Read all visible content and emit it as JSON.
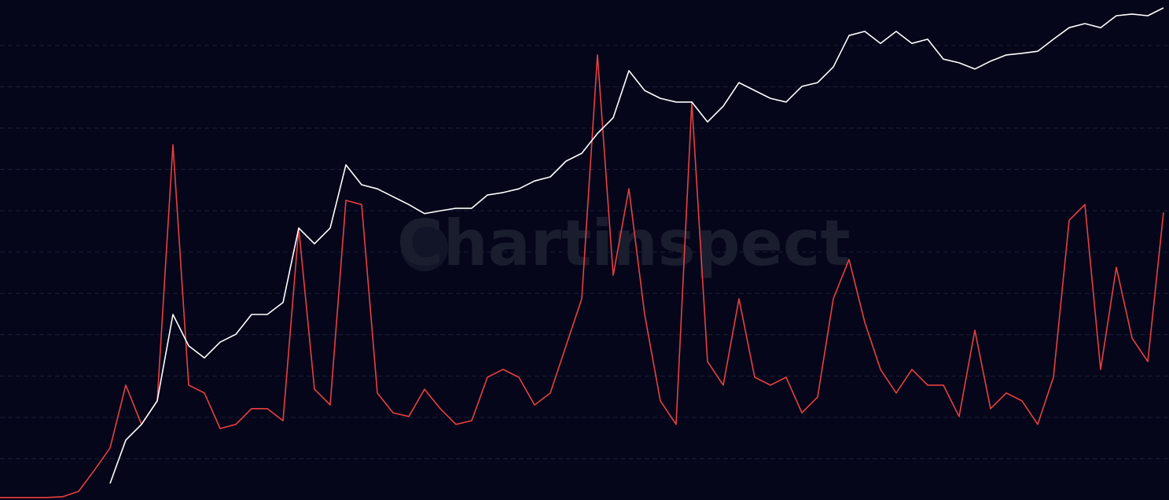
{
  "chart_data": {
    "type": "line",
    "watermark": "Chartinspect",
    "background": "#05061a",
    "grid": true,
    "ylim": [
      0,
      12.1
    ],
    "yticks": [
      1,
      2,
      3,
      4,
      5,
      6,
      7,
      8,
      9,
      10,
      11
    ],
    "categories": [
      null,
      null,
      null,
      null,
      null,
      null,
      null,
      null,
      null,
      null,
      null,
      null,
      null,
      null,
      null,
      null,
      null,
      null,
      null,
      null,
      null,
      null,
      null,
      null,
      null,
      null,
      null,
      null,
      null,
      null,
      null,
      null,
      null,
      null,
      null,
      null,
      null,
      null,
      null,
      null,
      null,
      null,
      null,
      null,
      null,
      null,
      null,
      null,
      null,
      null,
      null,
      null,
      null,
      null,
      null,
      null,
      null,
      null,
      null,
      null,
      null,
      null,
      null,
      null,
      null,
      null,
      null,
      null,
      null,
      null,
      null,
      null,
      null,
      null,
      null
    ],
    "series": [
      {
        "color": "#ffffff",
        "values": [
          null,
          null,
          null,
          null,
          null,
          null,
          null,
          0.4,
          1.45,
          1.83,
          2.4,
          4.49,
          3.73,
          3.44,
          3.82,
          4.01,
          4.49,
          4.49,
          4.78,
          6.58,
          6.2,
          6.58,
          8.11,
          7.63,
          7.53,
          7.34,
          7.15,
          6.93,
          7.0,
          7.06,
          7.06,
          7.38,
          7.44,
          7.53,
          7.72,
          7.82,
          8.2,
          8.39,
          8.87,
          9.25,
          10.39,
          9.91,
          9.72,
          9.63,
          9.63,
          9.15,
          9.53,
          10.1,
          9.91,
          9.72,
          9.63,
          10.01,
          10.1,
          10.48,
          11.24,
          11.34,
          11.05,
          11.34,
          11.05,
          11.15,
          10.67,
          10.58,
          10.43,
          10.62,
          10.77,
          10.81,
          10.86,
          11.15,
          11.43,
          11.53,
          11.43,
          11.72,
          11.76,
          11.72,
          11.91
        ]
      },
      {
        "color": "#e8403f",
        "values": [
          0.06,
          0.06,
          0.06,
          0.06,
          0.08,
          0.21,
          0.72,
          1.26,
          2.78,
          1.83,
          2.4,
          8.6,
          2.78,
          2.59,
          1.73,
          1.83,
          2.21,
          2.21,
          1.92,
          6.58,
          2.68,
          2.3,
          7.25,
          7.15,
          2.59,
          2.11,
          2.02,
          2.68,
          2.21,
          1.83,
          1.92,
          2.97,
          3.16,
          2.97,
          2.3,
          2.59,
          3.73,
          4.87,
          10.77,
          5.44,
          7.53,
          4.49,
          2.4,
          1.83,
          9.63,
          3.35,
          2.78,
          4.87,
          2.97,
          2.78,
          2.97,
          2.11,
          2.49,
          4.87,
          5.82,
          4.3,
          3.16,
          2.59,
          3.16,
          2.78,
          2.78,
          2.02,
          4.11,
          2.21,
          2.59,
          2.4,
          1.83,
          2.97,
          6.77,
          7.15,
          3.16,
          5.63,
          3.92,
          3.35,
          6.96
        ]
      }
    ]
  }
}
